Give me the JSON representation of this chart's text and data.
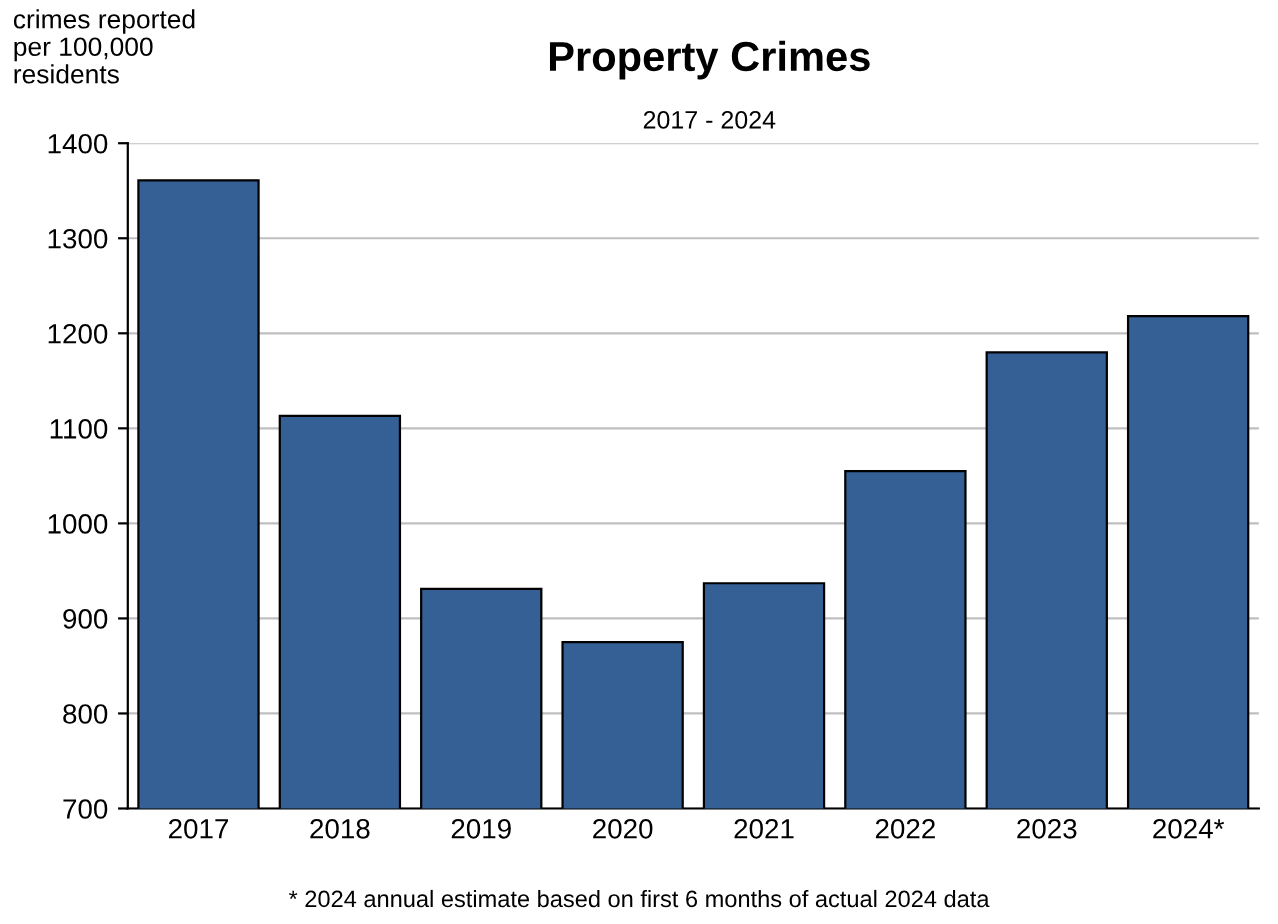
{
  "chart_data": {
    "type": "bar",
    "title": "Property Crimes",
    "subtitle": "2017 - 2024",
    "ylabel": "crimes reported\nper 100,000\nresidents",
    "categories": [
      "2017",
      "2018",
      "2019",
      "2020",
      "2021",
      "2022",
      "2023",
      "2024*"
    ],
    "series": [
      {
        "color": "#356096",
        "values": [
          1361,
          1113,
          931,
          875,
          937,
          1055,
          1180,
          1218
        ]
      }
    ],
    "ylim": [
      700,
      1400
    ],
    "yticks": [
      700,
      800,
      900,
      1000,
      1100,
      1200,
      1300,
      1400
    ],
    "grid": "y",
    "legend": false,
    "annotations": [
      "* 2024 annual estimate based on first 6 months of actual 2024 data"
    ]
  }
}
